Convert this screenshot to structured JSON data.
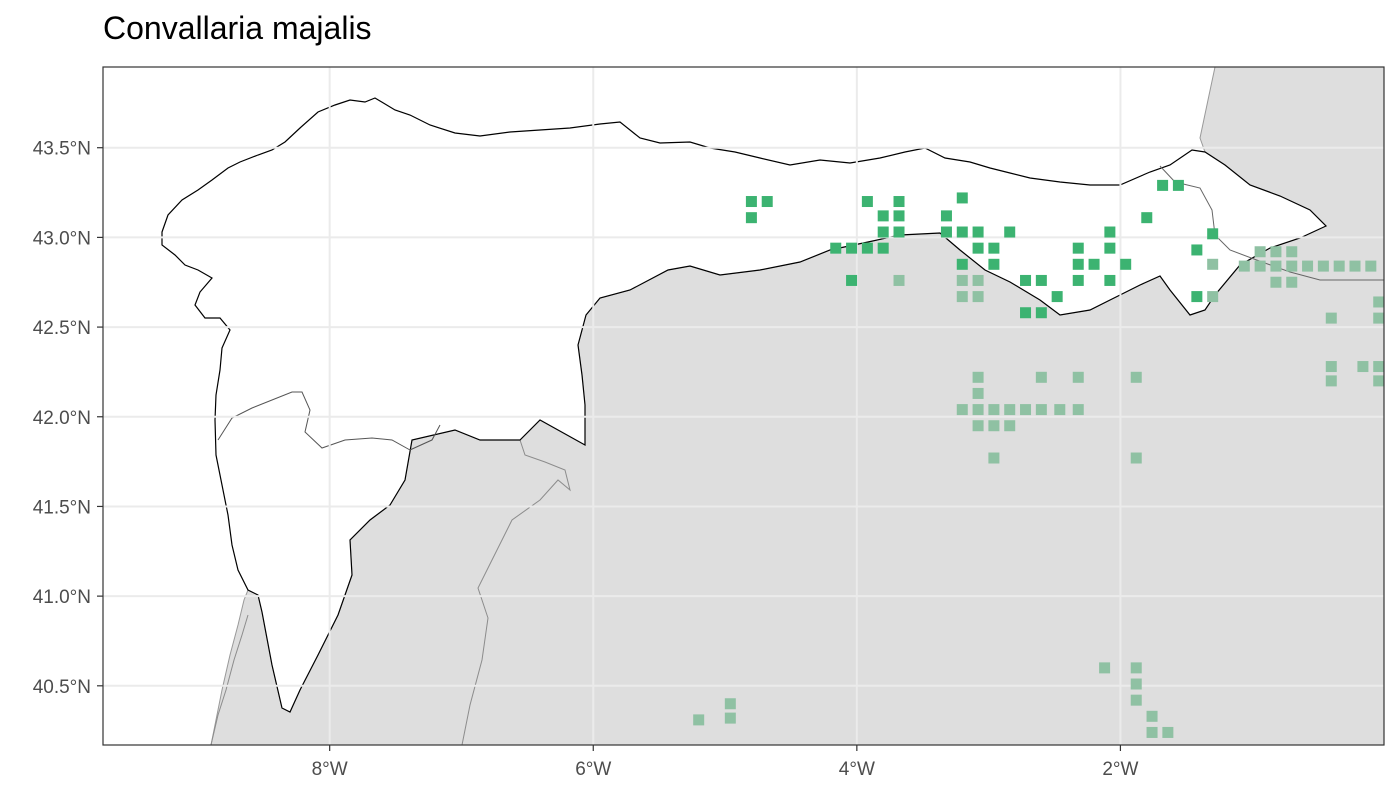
{
  "title": "Convallaria majalis",
  "axes": {
    "x_ticks": [
      {
        "lon": -8,
        "label": "8°W"
      },
      {
        "lon": -6,
        "label": "6°W"
      },
      {
        "lon": -4,
        "label": "4°W"
      },
      {
        "lon": -2,
        "label": "2°W"
      }
    ],
    "y_ticks": [
      {
        "lat": 43.5,
        "label": "43.5°N"
      },
      {
        "lat": 43.0,
        "label": "43.0°N"
      },
      {
        "lat": 42.5,
        "label": "42.5°N"
      },
      {
        "lat": 42.0,
        "label": "42.0°N"
      },
      {
        "lat": 41.5,
        "label": "41.5°N"
      },
      {
        "lat": 41.0,
        "label": "41.0°N"
      },
      {
        "lat": 40.5,
        "label": "40.5°N"
      }
    ],
    "lon_range": [
      -9.72,
      0.0
    ],
    "lat_range": [
      40.17,
      43.95
    ]
  },
  "colors": {
    "inside": "#3cb371",
    "outside": "#8fc1a3",
    "land_outside": "#dedede",
    "land_inside": "#ffffff"
  },
  "occurrences_inside": [
    [
      -4.8,
      43.2
    ],
    [
      -4.68,
      43.2
    ],
    [
      -4.8,
      43.11
    ],
    [
      -3.92,
      43.2
    ],
    [
      -3.68,
      43.2
    ],
    [
      -3.2,
      43.22
    ],
    [
      -3.8,
      43.12
    ],
    [
      -3.68,
      43.12
    ],
    [
      -3.32,
      43.12
    ],
    [
      -3.8,
      43.03
    ],
    [
      -3.68,
      43.03
    ],
    [
      -3.32,
      43.03
    ],
    [
      -3.2,
      43.03
    ],
    [
      -3.08,
      43.03
    ],
    [
      -2.84,
      43.03
    ],
    [
      -2.08,
      43.03
    ],
    [
      -1.8,
      43.11
    ],
    [
      -1.3,
      43.02
    ],
    [
      -4.16,
      42.94
    ],
    [
      -4.04,
      42.94
    ],
    [
      -3.92,
      42.94
    ],
    [
      -3.8,
      42.94
    ],
    [
      -3.08,
      42.94
    ],
    [
      -2.96,
      42.94
    ],
    [
      -2.32,
      42.94
    ],
    [
      -2.08,
      42.94
    ],
    [
      -1.42,
      42.93
    ],
    [
      -3.2,
      42.85
    ],
    [
      -2.96,
      42.85
    ],
    [
      -2.32,
      42.85
    ],
    [
      -2.2,
      42.85
    ],
    [
      -1.96,
      42.85
    ],
    [
      -4.04,
      42.76
    ],
    [
      -2.72,
      42.76
    ],
    [
      -2.6,
      42.76
    ],
    [
      -2.32,
      42.76
    ],
    [
      -2.08,
      42.76
    ],
    [
      -2.48,
      42.67
    ],
    [
      -1.42,
      42.67
    ],
    [
      -2.72,
      42.58
    ],
    [
      -2.6,
      42.58
    ],
    [
      -1.68,
      43.29
    ],
    [
      -1.56,
      43.29
    ]
  ],
  "occurrences_outside": [
    [
      -3.68,
      42.76
    ],
    [
      -3.2,
      42.76
    ],
    [
      -3.08,
      42.76
    ],
    [
      -3.2,
      42.67
    ],
    [
      -3.08,
      42.67
    ],
    [
      -1.3,
      42.67
    ],
    [
      -1.3,
      42.85
    ],
    [
      -1.06,
      42.84
    ],
    [
      -0.94,
      42.84
    ],
    [
      -0.82,
      42.84
    ],
    [
      -0.7,
      42.84
    ],
    [
      -0.58,
      42.84
    ],
    [
      -0.46,
      42.84
    ],
    [
      -0.34,
      42.84
    ],
    [
      -0.22,
      42.84
    ],
    [
      -0.1,
      42.84
    ],
    [
      -0.94,
      42.92
    ],
    [
      -0.82,
      42.92
    ],
    [
      -0.7,
      42.92
    ],
    [
      -0.82,
      42.75
    ],
    [
      -0.7,
      42.75
    ],
    [
      -0.4,
      42.55
    ],
    [
      -0.04,
      42.64
    ],
    [
      -0.04,
      42.55
    ],
    [
      -0.4,
      42.28
    ],
    [
      -0.4,
      42.2
    ],
    [
      -0.16,
      42.28
    ],
    [
      -0.04,
      42.28
    ],
    [
      -0.04,
      42.2
    ],
    [
      -3.08,
      42.22
    ],
    [
      -2.6,
      42.22
    ],
    [
      -2.32,
      42.22
    ],
    [
      -1.88,
      42.22
    ],
    [
      -3.08,
      42.13
    ],
    [
      -3.2,
      42.04
    ],
    [
      -3.08,
      42.04
    ],
    [
      -2.96,
      42.04
    ],
    [
      -2.84,
      42.04
    ],
    [
      -2.72,
      42.04
    ],
    [
      -2.6,
      42.04
    ],
    [
      -2.46,
      42.04
    ],
    [
      -2.32,
      42.04
    ],
    [
      -3.08,
      41.95
    ],
    [
      -2.96,
      41.95
    ],
    [
      -2.84,
      41.95
    ],
    [
      -2.96,
      41.77
    ],
    [
      -1.88,
      41.77
    ],
    [
      -2.12,
      40.6
    ],
    [
      -1.88,
      40.6
    ],
    [
      -1.88,
      40.51
    ],
    [
      -1.88,
      40.42
    ],
    [
      -1.76,
      40.33
    ],
    [
      -1.76,
      40.24
    ],
    [
      -1.64,
      40.24
    ],
    [
      -4.96,
      40.4
    ],
    [
      -4.96,
      40.32
    ],
    [
      -5.2,
      40.31
    ]
  ]
}
